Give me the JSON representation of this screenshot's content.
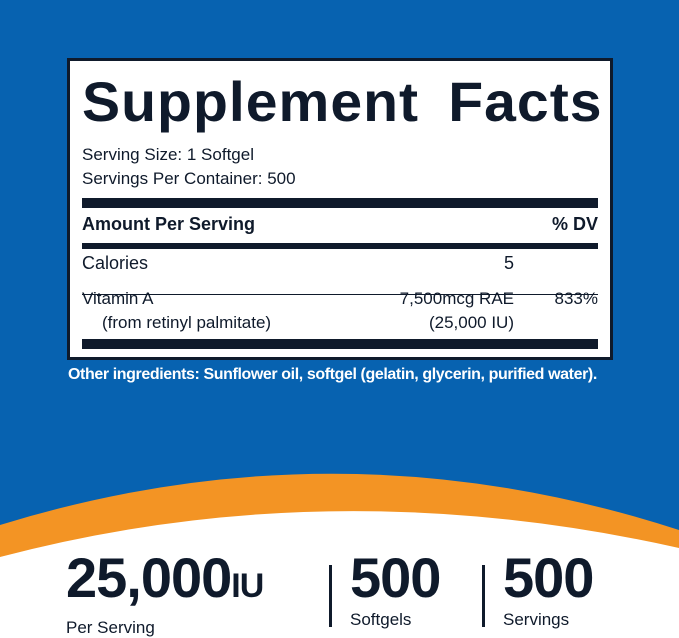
{
  "colors": {
    "blue": "#0762b0",
    "orange": "#f39424",
    "ink": "#0f1a2b"
  },
  "facts": {
    "title": "Supplement Facts",
    "serving_size": "Serving Size: 1 Softgel",
    "servings_per_container": "Servings Per Container: 500",
    "header_amount": "Amount Per Serving",
    "header_dv": "% DV",
    "rows": [
      {
        "name": "Calories",
        "amount": "5",
        "dv": ""
      },
      {
        "name": "Vitamin A",
        "sub": "(from retinyl palmitate)",
        "amount": "7,500mcg RAE",
        "amount_sub": "(25,000 IU)",
        "dv": "833%"
      }
    ]
  },
  "other_ingredients": "Other ingredients: Sunflower oil, softgel (gelatin, glycerin, purified water).",
  "stats": [
    {
      "value": "25,000",
      "unit": "IU",
      "label": "Per Serving"
    },
    {
      "value": "500",
      "label": "Softgels"
    },
    {
      "value": "500",
      "label": "Servings"
    }
  ]
}
